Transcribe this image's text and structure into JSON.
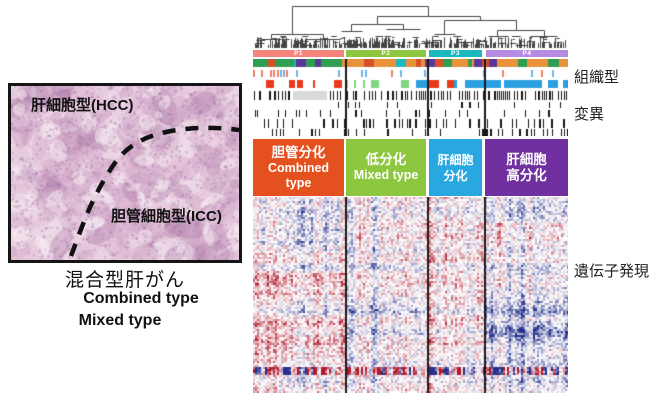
{
  "figure": {
    "left": {
      "histology_label_hcc": "肝細胞型(HCC)",
      "histology_label_icc": "胆管細胞型(ICC)",
      "caption_jp": "混合型肝がん",
      "caption_en_1": "Combined type",
      "caption_en_2": "Mixed type"
    },
    "right": {
      "cluster_headers": [
        {
          "label": "P1",
          "color": "#F5837B"
        },
        {
          "label": "P2",
          "color": "#8DC63F"
        },
        {
          "label": "P3",
          "color": "#1CB8BF"
        },
        {
          "label": "P4",
          "color": "#B68BE4"
        }
      ],
      "cluster_blocks": [
        {
          "lines": [
            "胆管分化",
            "Combined",
            "type"
          ],
          "color": "#E4511E"
        },
        {
          "lines": [
            "低分化",
            "Mixed type"
          ],
          "color": "#8DC63F"
        },
        {
          "lines": [
            "肝細胞",
            "分化"
          ],
          "color": "#29A8E0"
        },
        {
          "lines": [
            "肝細胞",
            "高分化"
          ],
          "color": "#7030A0"
        }
      ],
      "side_labels": {
        "tissue": "組織型",
        "mutation": "変異",
        "expression": "遺伝子発現"
      }
    }
  },
  "palette": {
    "annotation_row1": [
      "#2E9E50",
      "#5C3799",
      "#E8923C",
      "#D94F2B",
      "#1CB8BF"
    ],
    "annotation_row2": [
      "#6FB3E8",
      "#F08060"
    ],
    "annotation_row3": [
      "#E8391C",
      "#7ED87E",
      "#2B9FE0"
    ],
    "heatmap_positive": "#B2182B",
    "heatmap_negative": "#26308C",
    "barcode_black": "#141414",
    "barcode_gray": "#D9D9D9",
    "dendrogram_line": "#444444",
    "histology_base": "#EBD3E2",
    "separator": "#1A1A1A"
  },
  "chart_data": {
    "type": "heatmap",
    "dendrogram": "hierarchical clustering tree across all sample columns (top)",
    "column_groups": [
      "P1",
      "P2",
      "P3",
      "P4"
    ],
    "cluster_labels": [
      {
        "group": "P1",
        "jp": "胆管分化",
        "en": "Combined type"
      },
      {
        "group": "P2",
        "jp": "低分化",
        "en": "Mixed type"
      },
      {
        "group": "P3",
        "jp": "肝細胞分化",
        "en": ""
      },
      {
        "group": "P4",
        "jp": "肝細胞高分化",
        "en": ""
      }
    ],
    "annotation_tracks": [
      {
        "label": "組織型",
        "rows": 3,
        "style": "categorical color bars"
      },
      {
        "label": "変異",
        "rows": 5,
        "style": "black tick barcode rows"
      }
    ],
    "matrix_label": "遺伝子発現",
    "colormap": "blue-white-red diverging",
    "legend_position": "none",
    "notes": "columns = tumor samples grouped into clusters P1-P4; numeric expression values are not labeled in the figure"
  }
}
